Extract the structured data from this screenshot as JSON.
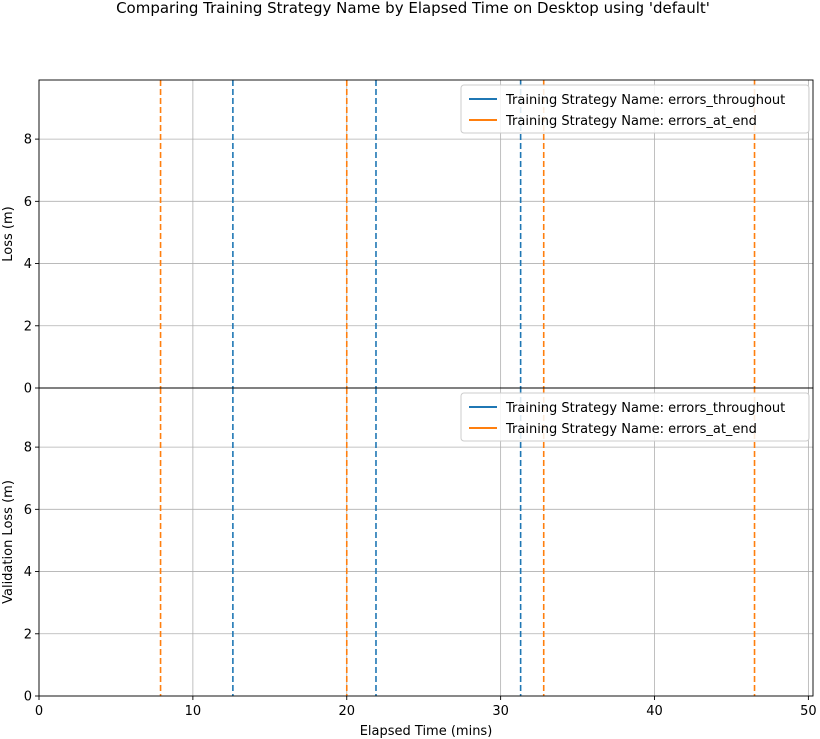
{
  "chart_data": {
    "type": "line",
    "title": "Comparing Training Strategy Name by Elapsed Time on Desktop using 'default'",
    "xlabel": "Elapsed Time (mins)",
    "xlim": [
      0,
      50.3
    ],
    "x_ticks": [
      0,
      10,
      20,
      30,
      40,
      50
    ],
    "grid": true,
    "legend_placement": "top-right",
    "series": [
      {
        "name": "Training Strategy Name: errors_throughout",
        "color": "#1f77b4",
        "vlines": [
          12.6,
          21.9,
          31.3
        ]
      },
      {
        "name": "Training Strategy Name: errors_at_end",
        "color": "#ff7f0e",
        "vlines": [
          7.9,
          20.0,
          32.8,
          46.5
        ]
      }
    ],
    "subplots": [
      {
        "ylabel": "Loss (m)",
        "ylim": [
          0,
          9.9
        ],
        "y_ticks": [
          0,
          2,
          4,
          6,
          8
        ]
      },
      {
        "ylabel": "Validation Loss (m)",
        "ylim": [
          0,
          9.9
        ],
        "y_ticks": [
          0,
          2,
          4,
          6,
          8
        ]
      }
    ]
  }
}
